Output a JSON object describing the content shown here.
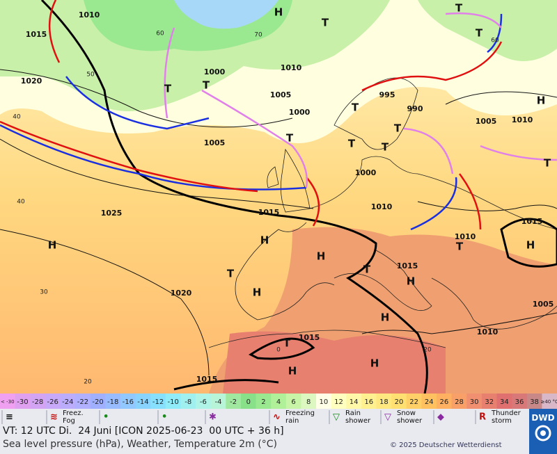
{
  "map": {
    "labels": [
      "1010",
      "1015",
      "1020",
      "1000",
      "1010",
      "1005",
      "1000",
      "1005",
      "995",
      "990",
      "1000",
      "1010",
      "1015",
      "1025",
      "1020",
      "1015",
      "1015",
      "1015",
      "1010",
      "1015",
      "1005",
      "1010",
      "1005",
      "1010",
      "H",
      "H",
      "H",
      "H",
      "H",
      "H",
      "H",
      "H",
      "H",
      "H",
      "H",
      "T",
      "T",
      "T",
      "T",
      "T",
      "T",
      "T",
      "T",
      "T",
      "T",
      "T",
      "T",
      "T",
      "T",
      "T",
      "60",
      "70",
      "50",
      "40",
      "40",
      "30",
      "20",
      "60",
      "0",
      "20"
    ]
  },
  "scale": {
    "ticks": [
      "< -30",
      -30,
      -28,
      -26,
      -24,
      -22,
      -20,
      -18,
      -16,
      -14,
      -12,
      -10,
      -8,
      -6,
      -4,
      -2,
      0,
      2,
      4,
      6,
      8,
      10,
      12,
      14,
      16,
      18,
      20,
      22,
      24,
      26,
      28,
      30,
      32,
      34,
      36,
      38,
      "≥40 °C"
    ],
    "colors": [
      "#f0a0f0",
      "#e0a0f0",
      "#d4a4f4",
      "#c8a8f8",
      "#bcacfc",
      "#b0b0ff",
      "#a0b0ff",
      "#98bcff",
      "#90c8ff",
      "#88d4ff",
      "#88e0ff",
      "#90ecf8",
      "#a0f0f0",
      "#b0f4e8",
      "#b8f4d8",
      "#a0e8a0",
      "#88e088",
      "#9ae890",
      "#b0f098",
      "#c8f4a8",
      "#dcf8c0",
      "#ffffe8",
      "#ffffc0",
      "#fff8a8",
      "#fff090",
      "#ffe880",
      "#ffe070",
      "#ffd068",
      "#ffc060",
      "#ffb060",
      "#f8a068",
      "#f09070",
      "#e88070",
      "#e07070",
      "#d87878",
      "#c88888",
      "#d8b8c8"
    ]
  },
  "legend": [
    "Fog",
    "Freez. Fog",
    "Drizzle",
    "Rain",
    "Snow",
    "Freezing rain",
    "Rain shower",
    "Snow shower",
    "Hail",
    "Thunder storm"
  ],
  "logo": "DWD",
  "footer": {
    "valid_time": "VT: 12 UTC Di.  24 Juni [ICON 2025-06-23  00 UTC + 36 h]",
    "description": "Sea level pressure (hPa), Weather, Temperature 2m (°C)",
    "copyright": "© 2025 Deutscher Wetterdienst"
  }
}
